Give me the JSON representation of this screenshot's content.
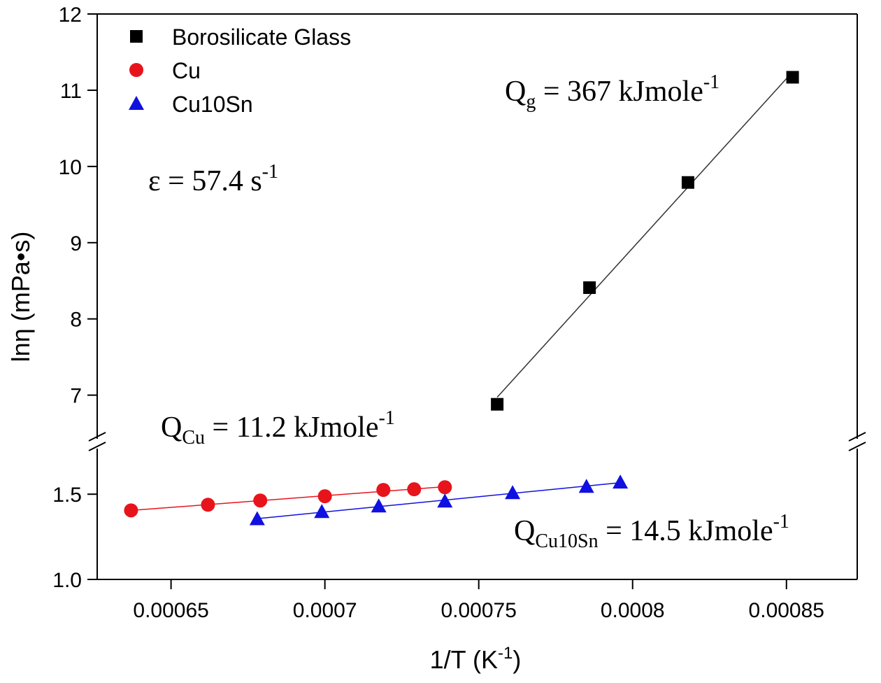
{
  "chart_data": {
    "type": "scatter",
    "xlabel": {
      "main": "1/T (K",
      "sup": "-1",
      "end": ")"
    },
    "ylabel": "lnη (mPa•s)",
    "xlim": [
      0.000626,
      0.000873
    ],
    "xticks": [
      0.00065,
      0.0007,
      0.00075,
      0.0008,
      0.00085
    ],
    "ylim": [
      1.0,
      1.78
    ],
    "yticks": [
      {
        "value": 1.0,
        "label": "1.0"
      },
      1.5
    ],
    "ylim_upper": [
      6.4,
      12
    ],
    "yticks_upper": [
      7,
      8,
      9,
      10,
      11,
      12
    ],
    "series": [
      {
        "name": "Borosilicate Glass",
        "color": "#000000",
        "marker": "square",
        "axis": "upper",
        "x": [
          0.000756,
          0.000786,
          0.000818,
          0.000852
        ],
        "values": [
          6.88,
          8.41,
          9.79,
          11.17
        ]
      },
      {
        "name": "Cu",
        "color": "#e8141c",
        "marker": "circle",
        "axis": "lower",
        "x": [
          0.000637,
          0.000662,
          0.000679,
          0.0007,
          0.000719,
          0.000729,
          0.000739
        ],
        "values": [
          1.405,
          1.438,
          1.463,
          1.488,
          1.525,
          1.529,
          1.541
        ]
      },
      {
        "name": "Cu10Sn",
        "color": "#1010e0",
        "marker": "triangle",
        "axis": "lower",
        "x": [
          0.000678,
          0.000699,
          0.0007175,
          0.000739,
          0.000761,
          0.000785,
          0.000796
        ],
        "values": [
          1.355,
          1.397,
          1.43,
          1.459,
          1.508,
          1.545,
          1.57
        ]
      }
    ],
    "annotations": [
      {
        "main": "Q",
        "sub": "g",
        "rest": " = 367 kJmole",
        "sup": "-1"
      },
      {
        "main": "ε = 57.4 s",
        "sup": "-1"
      },
      {
        "main": "Q",
        "sub": "Cu",
        "rest": " = 11.2 kJmole",
        "sup": "-1"
      },
      {
        "main": "Q",
        "sub": "Cu10Sn",
        "rest": " = 14.5 kJmole",
        "sup": "-1"
      }
    ]
  }
}
